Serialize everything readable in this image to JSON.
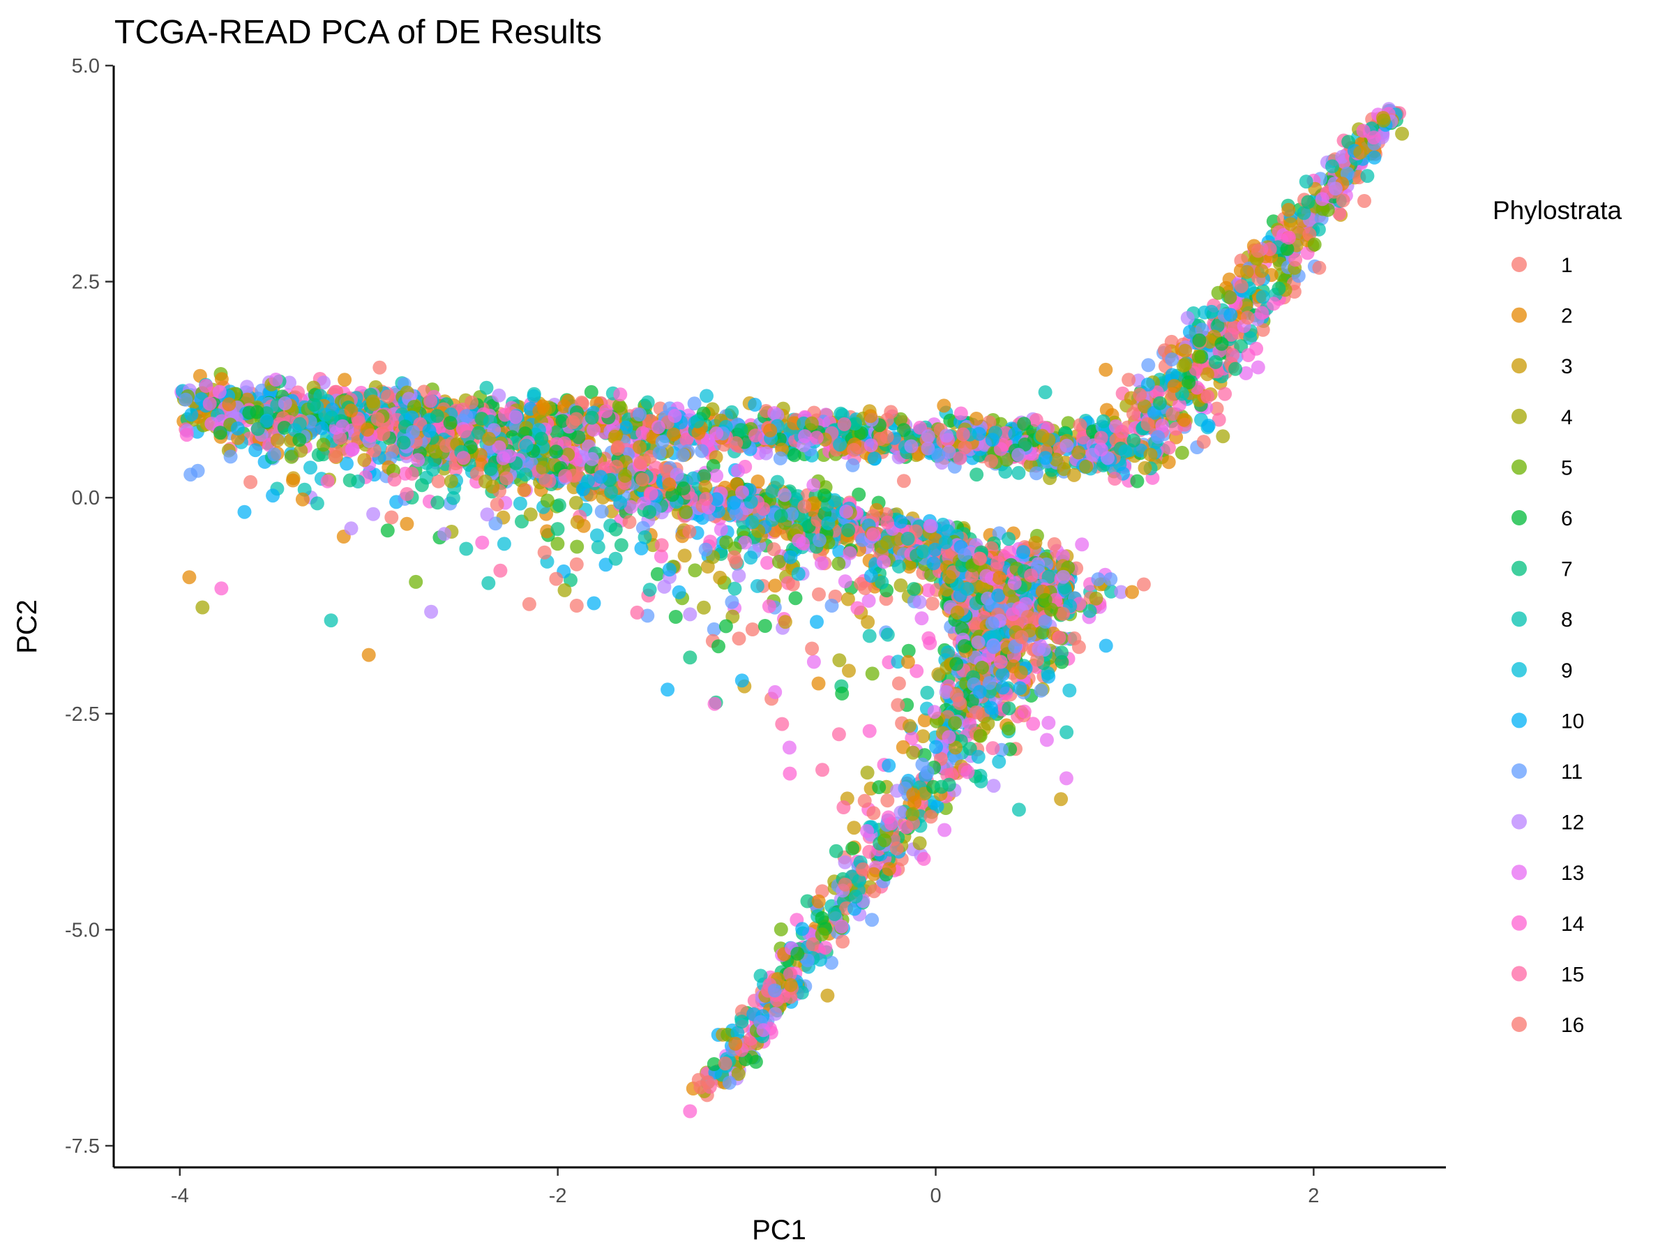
{
  "chart_data": {
    "type": "scatter",
    "title": "TCGA-READ PCA of DE Results",
    "xlabel": "PC1",
    "ylabel": "PC2",
    "xlim": [
      -4.35,
      2.7
    ],
    "ylim": [
      -7.75,
      5.0
    ],
    "xticks": [
      -4,
      -2,
      0,
      2
    ],
    "xtick_labels": [
      "-4",
      "-2",
      "0",
      "2"
    ],
    "yticks": [
      5.0,
      2.5,
      0.0,
      -2.5,
      -5.0,
      -7.5
    ],
    "ytick_labels": [
      "5.0",
      "2.5",
      "0.0",
      "-2.5",
      "-5.0",
      "-7.5"
    ],
    "grid": false,
    "legend": {
      "title": "Phylostrata",
      "placement": "right",
      "entries": [
        "1",
        "2",
        "3",
        "4",
        "5",
        "6",
        "7",
        "8",
        "9",
        "10",
        "11",
        "12",
        "13",
        "14",
        "15",
        "16"
      ],
      "colors": [
        "#F8766D",
        "#E58700",
        "#C99800",
        "#A3A500",
        "#6BB100",
        "#00BA38",
        "#00BF7D",
        "#00C0AF",
        "#00BCD8",
        "#00B0F6",
        "#619CFF",
        "#B983FF",
        "#E76BF3",
        "#FD61D1",
        "#FF67A4",
        "#F8766D"
      ]
    },
    "structure": {
      "upper_band": {
        "x": [
          -4.0,
          1.0
        ],
        "y_at_start": 1.1,
        "y_at_end": 0.55
      },
      "lower_band": {
        "x": [
          -4.0,
          0.72
        ],
        "y_at_start": 1.05,
        "y_at_end": -0.95
      },
      "upper_arm": {
        "x": [
          1.0,
          2.4
        ],
        "y": [
          0.45,
          4.45
        ]
      },
      "lower_arm": {
        "x": [
          0.72,
          -1.2
        ],
        "y": [
          -0.95,
          -6.85
        ]
      }
    },
    "outliers": [
      {
        "x": -3.95,
        "y": -0.92,
        "s": 2
      },
      {
        "x": -3.88,
        "y": -1.27,
        "s": 4
      },
      {
        "x": -3.78,
        "y": -1.05,
        "s": 14
      },
      {
        "x": -3.2,
        "y": -1.42,
        "s": 8
      },
      {
        "x": -3.0,
        "y": -1.82,
        "s": 2
      },
      {
        "x": -2.67,
        "y": -1.32,
        "s": 12
      },
      {
        "x": -2.9,
        "y": -0.38,
        "s": 6
      },
      {
        "x": -3.1,
        "y": 0.2,
        "s": 7
      },
      {
        "x": -2.6,
        "y": -0.42,
        "s": 12
      },
      {
        "x": -2.4,
        "y": -0.52,
        "s": 14
      },
      {
        "x": -1.9,
        "y": -1.25,
        "s": 1
      },
      {
        "x": -1.58,
        "y": -1.33,
        "s": 15
      },
      {
        "x": -1.3,
        "y": -1.35,
        "s": 12
      },
      {
        "x": -1.3,
        "y": -1.85,
        "s": 7
      },
      {
        "x": -0.85,
        "y": -2.25,
        "s": 13
      },
      {
        "x": -0.62,
        "y": -2.15,
        "s": 2
      },
      {
        "x": -0.6,
        "y": -3.15,
        "s": 15
      },
      {
        "x": -1.3,
        "y": -7.1,
        "s": 14
      },
      {
        "x": -1.15,
        "y": -1.72,
        "s": 6
      },
      {
        "x": -0.35,
        "y": -1.6,
        "s": 8
      },
      {
        "x": -0.2,
        "y": -2.4,
        "s": 1
      },
      {
        "x": -0.55,
        "y": -1.25,
        "s": 11
      },
      {
        "x": -1.45,
        "y": -0.55,
        "s": 15
      },
      {
        "x": -3.35,
        "y": -0.02,
        "s": 2
      },
      {
        "x": -3.6,
        "y": 0.55,
        "s": 10
      },
      {
        "x": -3.5,
        "y": 0.5,
        "s": 11
      },
      {
        "x": 0.9,
        "y": 1.48,
        "s": 2
      },
      {
        "x": 1.32,
        "y": 1.7,
        "s": 3
      },
      {
        "x": 0.58,
        "y": 1.22,
        "s": 8
      },
      {
        "x": 1.25,
        "y": 1.6,
        "s": 11
      },
      {
        "x": -0.35,
        "y": -2.7,
        "s": 14
      },
      {
        "x": -0.25,
        "y": -3.7,
        "s": 14
      },
      {
        "x": -0.3,
        "y": -3.35,
        "s": 6
      },
      {
        "x": -0.12,
        "y": -2.95,
        "s": 4
      }
    ]
  }
}
